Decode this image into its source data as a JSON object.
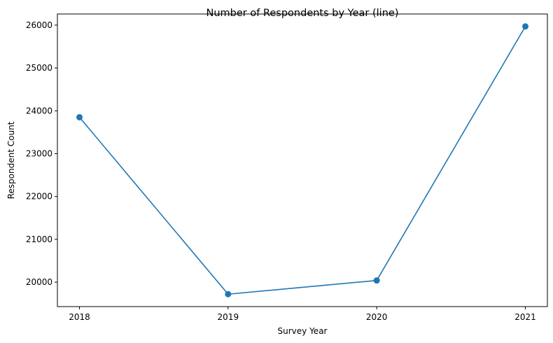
{
  "chart_data": {
    "type": "line",
    "title": "Number of Respondents by Year (line)",
    "xlabel": "Survey Year",
    "ylabel": "Respondent Count",
    "categories": [
      "2018",
      "2019",
      "2020",
      "2021"
    ],
    "series": [
      {
        "values": [
          23850,
          19720,
          20040,
          25970
        ]
      }
    ],
    "yticks": [
      20000,
      21000,
      22000,
      23000,
      24000,
      25000,
      26000
    ],
    "ylim": [
      19430,
      26260
    ],
    "grid": false,
    "legend": "none",
    "colors": {
      "line": "#1f77b4",
      "marker": "#1f77b4",
      "axis": "#000000"
    },
    "marker": "circle"
  }
}
